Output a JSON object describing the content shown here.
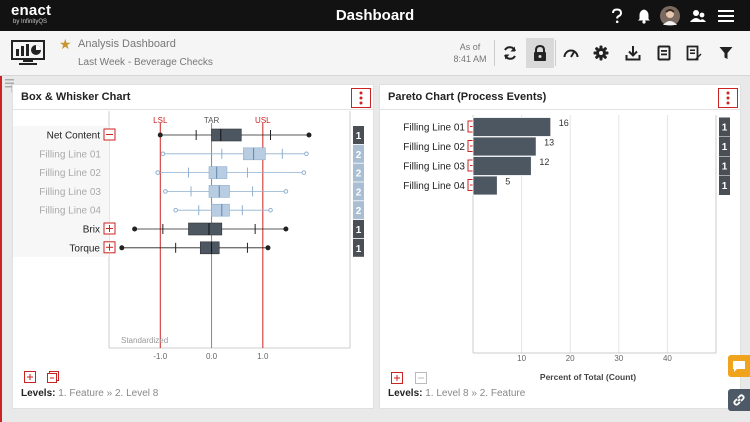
{
  "header": {
    "logo_main": "enact",
    "logo_sub": "by InfinityQS",
    "title": "Dashboard"
  },
  "toolbar": {
    "dashboard_name": "Analysis Dashboard",
    "subtitle": "Last Week - Beverage Checks",
    "as_of_label": "As of",
    "as_of_time": "8:41 AM"
  },
  "box_chart": {
    "title": "Box & Whisker Chart",
    "spec_labels": [
      "LSL",
      "TAR",
      "USL"
    ],
    "x_ticks": [
      "-1.0",
      "0.0",
      "1.0"
    ],
    "watermark": "Standardized",
    "rows": [
      {
        "label": "Net Content",
        "group": "collapse",
        "count": "1",
        "dim": false,
        "min": -1.0,
        "q1": 0.0,
        "median": 0.18,
        "q3": 0.58,
        "max": 1.9,
        "minor": [
          -0.3,
          1.15
        ]
      },
      {
        "label": "Filling Line 01",
        "group": "none",
        "count": "2",
        "dim": true,
        "min": -0.95,
        "q1": 0.62,
        "median": 0.82,
        "q3": 1.05,
        "max": 1.85,
        "minor": [
          0.2,
          1.38
        ]
      },
      {
        "label": "Filling Line 02",
        "group": "none",
        "count": "2",
        "dim": true,
        "min": -1.05,
        "q1": -0.05,
        "median": 0.1,
        "q3": 0.3,
        "max": 1.8,
        "minor": [
          -0.45,
          0.7
        ]
      },
      {
        "label": "Filling Line 03",
        "group": "none",
        "count": "2",
        "dim": true,
        "min": -0.9,
        "q1": -0.05,
        "median": 0.15,
        "q3": 0.35,
        "max": 1.45,
        "minor": [
          -0.4,
          0.8
        ]
      },
      {
        "label": "Filling Line 04",
        "group": "none",
        "count": "2",
        "dim": true,
        "min": -0.7,
        "q1": 0.0,
        "median": 0.2,
        "q3": 0.35,
        "max": 1.15,
        "minor": [
          -0.25,
          0.6
        ]
      },
      {
        "label": "Brix",
        "group": "expand",
        "count": "1",
        "dim": false,
        "min": -1.5,
        "q1": -0.45,
        "median": -0.05,
        "q3": 0.2,
        "max": 1.45,
        "minor": [
          -0.95,
          0.85
        ]
      },
      {
        "label": "Torque",
        "group": "expand",
        "count": "1",
        "dim": false,
        "min": -1.75,
        "q1": -0.22,
        "median": 0.0,
        "q3": 0.15,
        "max": 1.1,
        "minor": [
          -0.7,
          0.7
        ]
      }
    ],
    "levels_label": "Levels:",
    "levels_value": "1. Feature » 2. Level 8"
  },
  "pareto_chart": {
    "title": "Pareto Chart (Process Events)",
    "xlabel": "Percent of Total (Count)",
    "x_ticks": [
      "10",
      "20",
      "30",
      "40"
    ],
    "rows": [
      {
        "label": "Filling Line 01",
        "value": 16,
        "count": "1"
      },
      {
        "label": "Filling Line 02",
        "value": 13,
        "count": "1"
      },
      {
        "label": "Filling Line 03",
        "value": 12,
        "count": "1"
      },
      {
        "label": "Filling Line 04",
        "value": 5,
        "count": "1"
      }
    ],
    "levels_label": "Levels:",
    "levels_value": "1. Level 8 » 2. Feature"
  },
  "chart_data": [
    {
      "type": "box",
      "title": "Box & Whisker Chart",
      "categories": [
        "Net Content",
        "Filling Line 01",
        "Filling Line 02",
        "Filling Line 03",
        "Filling Line 04",
        "Brix",
        "Torque"
      ],
      "xlim": [
        -2.0,
        2.7
      ],
      "reference_lines": {
        "LSL": -1.0,
        "TAR": 0.0,
        "USL": 1.0
      }
    },
    {
      "type": "bar",
      "orientation": "horizontal",
      "title": "Pareto Chart (Process Events)",
      "categories": [
        "Filling Line 01",
        "Filling Line 02",
        "Filling Line 03",
        "Filling Line 04"
      ],
      "values": [
        16,
        13,
        12,
        5
      ],
      "xlabel": "Percent of Total (Count)",
      "xlim": [
        0,
        50
      ]
    }
  ],
  "colors": {
    "accent_red": "#cc2222",
    "bar_dark": "#4d5762",
    "box_light": "#b8cde2",
    "badge_dark": "#4a4f55",
    "badge_light": "#a9bdd3",
    "star": "#c8952e",
    "fab_orange": "#f0a31c",
    "fab_slate": "#4d5966"
  }
}
